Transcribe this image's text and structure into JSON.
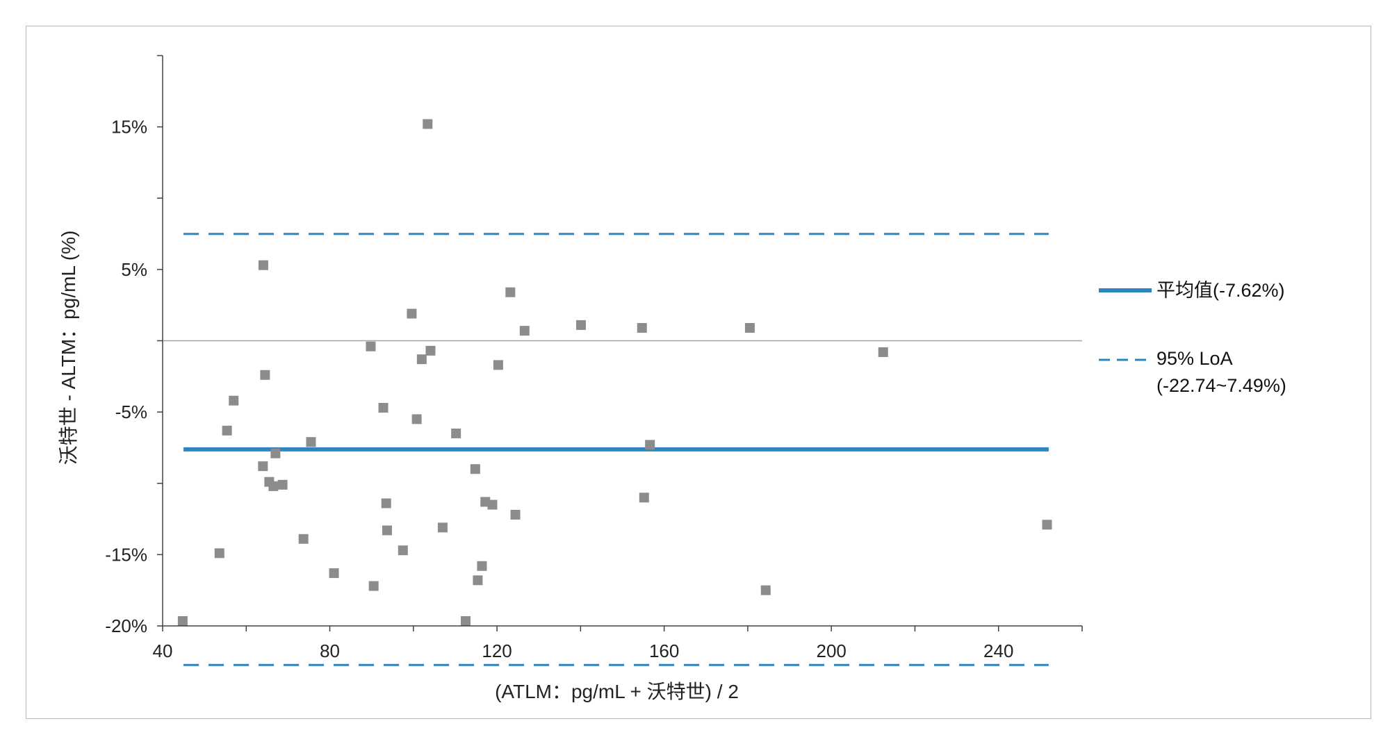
{
  "chart_data": {
    "type": "scatter",
    "xlabel": "(ATLM：pg/mL + 沃特世) / 2",
    "ylabel": "沃特世 - ALTM：pg/mL (%)",
    "xlim": [
      40,
      260
    ],
    "ylim": [
      -20,
      20
    ],
    "x_ticks": [
      40,
      80,
      120,
      160,
      200,
      240
    ],
    "x_tick_labels": [
      "40",
      "80",
      "120",
      "160",
      "200",
      "240"
    ],
    "y_ticks": [
      15,
      5,
      -5,
      -15,
      -20
    ],
    "y_tick_labels": [
      "15%",
      "5%",
      "-5%",
      "-15%",
      "-20%"
    ],
    "zero_line": 0,
    "mean": -7.62,
    "loa_lower": -22.74,
    "loa_upper": 7.49,
    "legend_position": "right",
    "legend": [
      {
        "name": "平均值(-7.62%)",
        "style": "solid",
        "color": "#2e86c1"
      },
      {
        "name": "95% LoA",
        "name_line2": "(-22.74~7.49%)",
        "style": "dashed",
        "color": "#2e86c1"
      }
    ],
    "marker_color": "#8c8c8c",
    "points": [
      {
        "x": 44.8,
        "y": -22.9
      },
      {
        "x": 53.6,
        "y": -14.9
      },
      {
        "x": 55.4,
        "y": -6.3
      },
      {
        "x": 57.0,
        "y": -4.2
      },
      {
        "x": 64.1,
        "y": 5.3
      },
      {
        "x": 64.5,
        "y": -2.4
      },
      {
        "x": 64.0,
        "y": -8.8
      },
      {
        "x": 65.5,
        "y": -9.9
      },
      {
        "x": 66.5,
        "y": -10.2
      },
      {
        "x": 67.0,
        "y": -7.9
      },
      {
        "x": 68.7,
        "y": -10.1
      },
      {
        "x": 73.7,
        "y": -13.9
      },
      {
        "x": 75.5,
        "y": -7.1
      },
      {
        "x": 81.0,
        "y": -16.3
      },
      {
        "x": 89.8,
        "y": -0.4
      },
      {
        "x": 90.5,
        "y": -17.2
      },
      {
        "x": 92.8,
        "y": -4.7
      },
      {
        "x": 93.5,
        "y": -11.4
      },
      {
        "x": 93.7,
        "y": -13.3
      },
      {
        "x": 97.5,
        "y": -14.7
      },
      {
        "x": 99.6,
        "y": 1.9
      },
      {
        "x": 100.8,
        "y": -5.5
      },
      {
        "x": 102.0,
        "y": -1.3
      },
      {
        "x": 103.4,
        "y": 15.2
      },
      {
        "x": 104.1,
        "y": -0.7
      },
      {
        "x": 107.0,
        "y": -13.1
      },
      {
        "x": 110.2,
        "y": -6.5
      },
      {
        "x": 112.5,
        "y": -20.4
      },
      {
        "x": 114.8,
        "y": -9.0
      },
      {
        "x": 115.4,
        "y": -16.8
      },
      {
        "x": 116.4,
        "y": -15.8
      },
      {
        "x": 117.2,
        "y": -11.3
      },
      {
        "x": 118.9,
        "y": -11.5
      },
      {
        "x": 120.3,
        "y": -1.7
      },
      {
        "x": 123.2,
        "y": 3.4
      },
      {
        "x": 124.4,
        "y": -12.2
      },
      {
        "x": 126.6,
        "y": 0.7
      },
      {
        "x": 140.1,
        "y": 1.1
      },
      {
        "x": 154.7,
        "y": 0.9
      },
      {
        "x": 155.2,
        "y": -11.0
      },
      {
        "x": 156.6,
        "y": -7.3
      },
      {
        "x": 180.5,
        "y": 0.9
      },
      {
        "x": 184.3,
        "y": -17.5
      },
      {
        "x": 212.4,
        "y": -0.8
      },
      {
        "x": 251.6,
        "y": -12.9
      }
    ]
  }
}
